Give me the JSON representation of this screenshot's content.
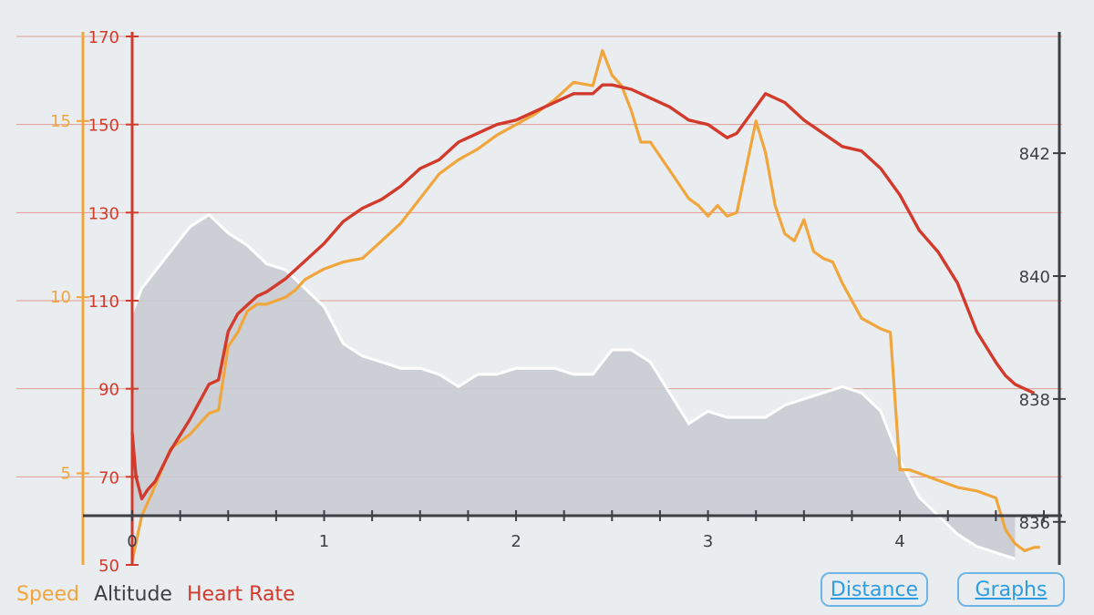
{
  "colors": {
    "speed": "#f0a63d",
    "heart_rate": "#d23a2c",
    "altitude_line": "#ffffff",
    "altitude_fill": "#c9ccd3",
    "axis_dark": "#3d3f44",
    "background": "#eaedf0",
    "button": "#2e9ce0"
  },
  "legend": {
    "speed": "Speed",
    "altitude": "Altitude",
    "heart_rate": "Heart Rate"
  },
  "buttons": {
    "distance": "Distance",
    "graphs": "Graphs"
  },
  "chart_data": {
    "type": "line",
    "x_range": [
      0,
      4.75
    ],
    "x_ticks": [
      0,
      1,
      2,
      3,
      4
    ],
    "grid": "horizontal lines at heart-rate ticks",
    "axes": {
      "speed": {
        "ticks": [
          5,
          10,
          15
        ],
        "range": [
          2.4,
          17.4
        ]
      },
      "heart_rate": {
        "ticks": [
          50,
          70,
          90,
          110,
          130,
          150,
          170
        ],
        "range": [
          50,
          170
        ]
      },
      "altitude": {
        "ticks": [
          836,
          838,
          840,
          842
        ],
        "range": [
          835.3,
          843.9
        ]
      }
    },
    "series": [
      {
        "name": "Speed",
        "axis": "speed",
        "x": [
          0,
          0.05,
          0.1,
          0.2,
          0.3,
          0.4,
          0.45,
          0.5,
          0.55,
          0.6,
          0.65,
          0.7,
          0.75,
          0.8,
          0.85,
          0.9,
          1.0,
          1.1,
          1.2,
          1.3,
          1.4,
          1.5,
          1.6,
          1.7,
          1.8,
          1.9,
          2.0,
          2.1,
          2.2,
          2.3,
          2.4,
          2.45,
          2.5,
          2.55,
          2.6,
          2.65,
          2.7,
          2.8,
          2.9,
          2.95,
          3.0,
          3.05,
          3.1,
          3.15,
          3.2,
          3.25,
          3.3,
          3.35,
          3.4,
          3.45,
          3.5,
          3.55,
          3.6,
          3.65,
          3.7,
          3.8,
          3.9,
          3.95,
          4.0,
          4.05,
          4.1,
          4.2,
          4.3,
          4.4,
          4.5,
          4.55,
          4.6,
          4.65,
          4.7,
          4.73
        ],
        "values": [
          2.5,
          3.8,
          4.4,
          5.7,
          6.1,
          6.7,
          6.8,
          8.6,
          9.0,
          9.6,
          9.8,
          9.8,
          9.9,
          10.0,
          10.2,
          10.5,
          10.8,
          11.0,
          11.1,
          11.6,
          12.1,
          12.8,
          13.5,
          13.9,
          14.2,
          14.6,
          14.9,
          15.2,
          15.6,
          16.1,
          16.0,
          17.0,
          16.3,
          16.0,
          15.3,
          14.4,
          14.4,
          13.6,
          12.8,
          12.6,
          12.3,
          12.6,
          12.3,
          12.4,
          13.7,
          15.0,
          14.1,
          12.6,
          11.8,
          11.6,
          12.2,
          11.3,
          11.1,
          11.0,
          10.4,
          9.4,
          9.1,
          9.0,
          5.1,
          5.1,
          5.0,
          4.8,
          4.6,
          4.5,
          4.3,
          3.4,
          3.0,
          2.8,
          2.9,
          2.9
        ]
      },
      {
        "name": "Altitude",
        "axis": "altitude",
        "x": [
          0,
          0.05,
          0.1,
          0.2,
          0.3,
          0.4,
          0.5,
          0.6,
          0.7,
          0.8,
          0.9,
          1.0,
          1.1,
          1.2,
          1.3,
          1.4,
          1.5,
          1.6,
          1.7,
          1.8,
          1.9,
          2.0,
          2.1,
          2.2,
          2.3,
          2.4,
          2.5,
          2.6,
          2.7,
          2.8,
          2.9,
          3.0,
          3.1,
          3.2,
          3.3,
          3.4,
          3.5,
          3.6,
          3.7,
          3.8,
          3.9,
          4.0,
          4.1,
          4.2,
          4.3,
          4.4,
          4.5,
          4.6
        ],
        "values": [
          839.4,
          839.8,
          840.0,
          840.4,
          840.8,
          841.0,
          840.7,
          840.5,
          840.2,
          840.1,
          839.8,
          839.5,
          838.9,
          838.7,
          838.6,
          838.5,
          838.5,
          838.4,
          838.2,
          838.4,
          838.4,
          838.5,
          838.5,
          838.5,
          838.4,
          838.4,
          838.8,
          838.8,
          838.6,
          838.1,
          837.6,
          837.8,
          837.7,
          837.7,
          837.7,
          837.9,
          838.0,
          838.1,
          838.2,
          838.1,
          837.8,
          837.0,
          836.4,
          836.1,
          835.8,
          835.6,
          835.5,
          835.4
        ]
      },
      {
        "name": "Heart Rate",
        "axis": "heart_rate",
        "x": [
          0,
          0.02,
          0.05,
          0.08,
          0.12,
          0.2,
          0.3,
          0.4,
          0.45,
          0.5,
          0.55,
          0.6,
          0.65,
          0.7,
          0.8,
          0.9,
          1.0,
          1.1,
          1.2,
          1.3,
          1.4,
          1.5,
          1.6,
          1.7,
          1.8,
          1.9,
          2.0,
          2.1,
          2.2,
          2.3,
          2.4,
          2.45,
          2.5,
          2.6,
          2.7,
          2.8,
          2.9,
          3.0,
          3.1,
          3.15,
          3.2,
          3.25,
          3.3,
          3.4,
          3.5,
          3.6,
          3.7,
          3.8,
          3.9,
          4.0,
          4.1,
          4.2,
          4.3,
          4.4,
          4.5,
          4.55,
          4.6,
          4.65,
          4.7
        ],
        "values": [
          80,
          70,
          65,
          67,
          69,
          76,
          83,
          91,
          92,
          103,
          107,
          109,
          111,
          112,
          115,
          119,
          123,
          128,
          131,
          133,
          136,
          140,
          142,
          146,
          148,
          150,
          151,
          153,
          155,
          157,
          157,
          159,
          159,
          158,
          156,
          154,
          151,
          150,
          147,
          148,
          151,
          154,
          157,
          155,
          151,
          148,
          145,
          144,
          140,
          134,
          126,
          121,
          114,
          103,
          96,
          93,
          91,
          90,
          89
        ]
      }
    ]
  }
}
